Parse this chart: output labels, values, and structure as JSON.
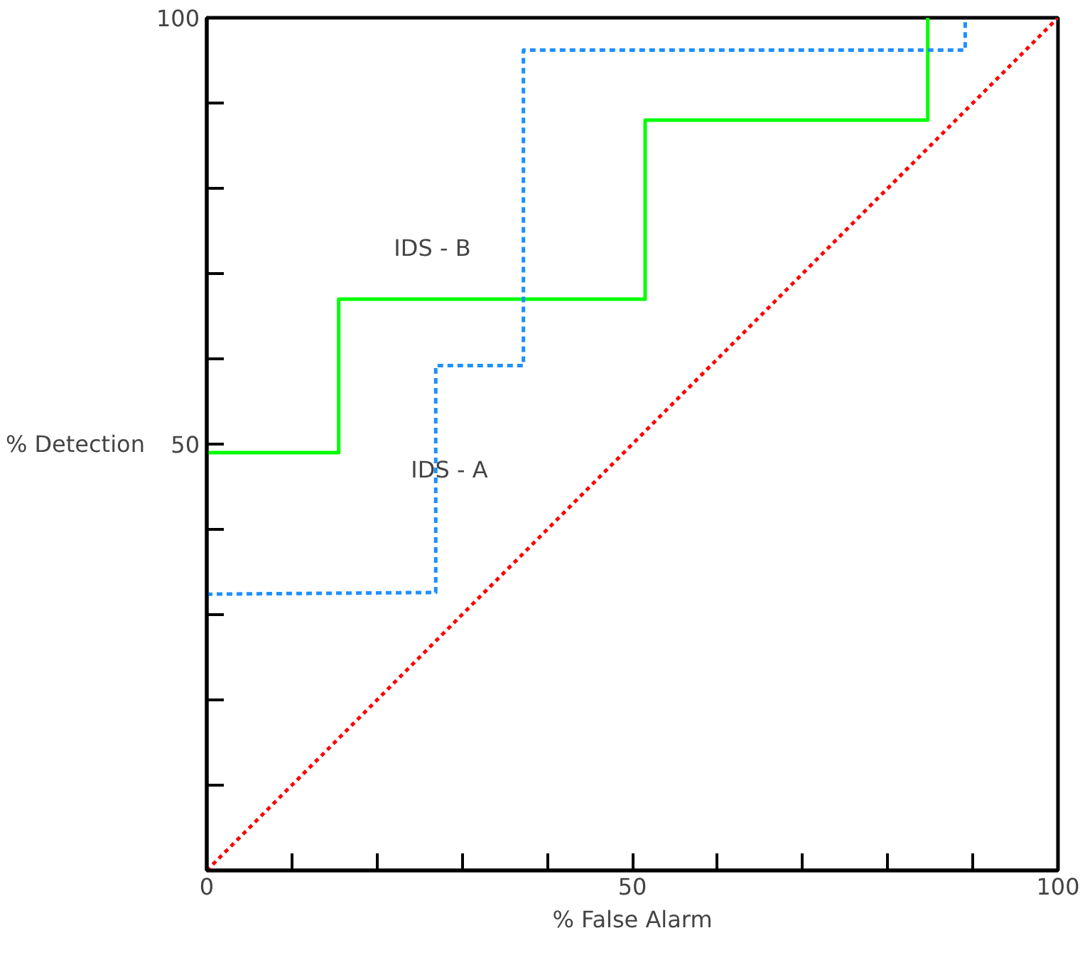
{
  "chart_data": {
    "type": "line",
    "xlabel": "% False Alarm",
    "ylabel": "% Detection",
    "xlim": [
      0,
      100
    ],
    "ylim": [
      0,
      100
    ],
    "xticks": [
      0,
      {
        "value": 10,
        "label": null
      },
      {
        "value": 20,
        "label": null
      },
      {
        "value": 30,
        "label": null
      },
      {
        "value": 40,
        "label": null
      },
      50,
      {
        "value": 60,
        "label": null
      },
      {
        "value": 70,
        "label": null
      },
      {
        "value": 80,
        "label": null
      },
      {
        "value": 90,
        "label": null
      },
      100
    ],
    "yticks": [
      {
        "value": 0,
        "label": null
      },
      {
        "value": 10,
        "label": null
      },
      {
        "value": 20,
        "label": null
      },
      {
        "value": 30,
        "label": null
      },
      {
        "value": 40,
        "label": null
      },
      50,
      {
        "value": 60,
        "label": null
      },
      {
        "value": 70,
        "label": null
      },
      {
        "value": 80,
        "label": null
      },
      {
        "value": 90,
        "label": null
      },
      100
    ],
    "grid": false,
    "series": [
      {
        "name": "IDS - B",
        "color": "#00ff00",
        "line_style": "solid",
        "x": [
          0,
          15.5,
          15.5,
          51.5,
          51.5,
          84.7,
          84.7
        ],
        "values": [
          49,
          49,
          67,
          67,
          88,
          88,
          100
        ]
      },
      {
        "name": "IDS - A",
        "color": "#1e90ff",
        "line_style": "dashed",
        "x": [
          0,
          26.9,
          26.9,
          37.2,
          37.2,
          89.1,
          89.1
        ],
        "values": [
          32.4,
          32.6,
          59.2,
          59.2,
          96.2,
          96.2,
          100
        ]
      },
      {
        "color": "#ff0000",
        "line_style": "dotted",
        "x": [
          0,
          100
        ],
        "values": [
          0,
          100
        ]
      }
    ]
  }
}
